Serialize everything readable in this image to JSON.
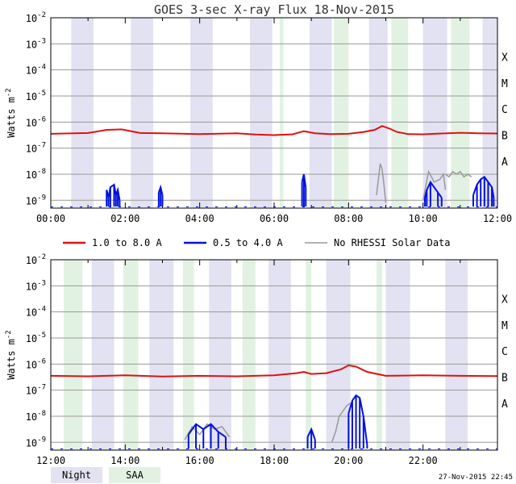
{
  "chart_data": {
    "type": "line",
    "title": "GOES 3-sec X-ray Flux   18-Nov-2015",
    "ylabel": "Watts m^-2",
    "ylim_log10": [
      -9.3,
      -2
    ],
    "y_ticks_exp": [
      -2,
      -3,
      -4,
      -5,
      -6,
      -7,
      -8,
      -9
    ],
    "flare_classes": [
      {
        "label": "X",
        "log10": -3.5
      },
      {
        "label": "M",
        "log10": -4.5
      },
      {
        "label": "C",
        "log10": -5.5
      },
      {
        "label": "B",
        "log10": -6.5
      },
      {
        "label": "A",
        "log10": -7.5
      }
    ],
    "colors": {
      "long": "#e01010",
      "short": "#0010e0",
      "nodata": "#999999",
      "night": "#e2e2f2",
      "saa": "#e2f2e2",
      "grid": "#999999",
      "axis": "#000000"
    },
    "legend": [
      {
        "label": "1.0 to 8.0 A",
        "color": "#e01010"
      },
      {
        "label": "0.5 to 4.0 A",
        "color": "#0010e0"
      },
      {
        "label": "No RHESSI Solar Data",
        "color": "#999999"
      }
    ],
    "shade_legend": [
      {
        "label": "Night",
        "color": "#e2e2f2"
      },
      {
        "label": "SAA",
        "color": "#e2f2e2"
      }
    ],
    "panels": [
      {
        "xlim_hours": [
          0,
          12
        ],
        "x_tick_labels": [
          "00:00",
          "02:00",
          "04:00",
          "06:00",
          "08:00",
          "10:00",
          "12:00"
        ],
        "night": [
          [
            0.55,
            1.15
          ],
          [
            2.15,
            2.75
          ],
          [
            3.75,
            4.35
          ],
          [
            5.35,
            5.95
          ],
          [
            6.95,
            7.55
          ],
          [
            8.55,
            9.05
          ],
          [
            10.0,
            10.65
          ],
          [
            11.6,
            12.0
          ]
        ],
        "saa": [
          [
            6.15,
            6.25
          ],
          [
            7.6,
            8.0
          ],
          [
            9.15,
            9.6
          ],
          [
            10.75,
            11.25
          ]
        ],
        "long_channel": {
          "t": [
            0.0,
            1.0,
            1.5,
            1.9,
            2.4,
            3.0,
            4.0,
            5.0,
            5.5,
            6.0,
            6.5,
            6.8,
            7.1,
            7.5,
            8.0,
            8.4,
            8.7,
            8.9,
            9.1,
            9.3,
            9.6,
            10.0,
            10.5,
            11.0,
            11.5,
            12.0
          ],
          "log10": [
            -6.45,
            -6.42,
            -6.3,
            -6.28,
            -6.42,
            -6.43,
            -6.46,
            -6.43,
            -6.48,
            -6.5,
            -6.47,
            -6.35,
            -6.43,
            -6.46,
            -6.45,
            -6.38,
            -6.3,
            -6.15,
            -6.25,
            -6.38,
            -6.46,
            -6.47,
            -6.44,
            -6.41,
            -6.43,
            -6.44
          ]
        },
        "short_channel_bursts": [
          {
            "t": [
              1.5,
              1.55,
              1.6,
              1.7,
              1.75,
              1.8,
              1.85
            ],
            "log10": [
              -8.6,
              -8.9,
              -8.5,
              -8.4,
              -8.8,
              -8.6,
              -9.0
            ]
          },
          {
            "t": [
              2.9,
              2.95,
              3.0
            ],
            "log10": [
              -8.7,
              -8.5,
              -8.8
            ]
          },
          {
            "t": [
              6.75,
              6.8,
              6.85
            ],
            "log10": [
              -8.3,
              -8.0,
              -8.5
            ]
          },
          {
            "t": [
              10.05,
              10.1,
              10.2,
              10.4,
              10.5
            ],
            "log10": [
              -8.9,
              -8.6,
              -8.3,
              -8.7,
              -8.9
            ]
          },
          {
            "t": [
              11.35,
              11.45,
              11.55,
              11.65,
              11.75,
              11.85,
              11.9
            ],
            "log10": [
              -8.8,
              -8.4,
              -8.2,
              -8.1,
              -8.3,
              -8.5,
              -8.9
            ]
          }
        ],
        "nodata_segments": [
          {
            "t": [
              8.75,
              8.8,
              8.85,
              8.9,
              8.95,
              9.0
            ],
            "log10": [
              -8.8,
              -8.2,
              -7.6,
              -7.8,
              -8.4,
              -9.1
            ]
          },
          {
            "t": [
              10.0,
              10.15,
              10.3,
              10.45,
              10.55,
              10.6
            ],
            "log10": [
              -9.0,
              -7.9,
              -8.3,
              -8.2,
              -8.0,
              -8.6
            ]
          },
          {
            "t": [
              10.6,
              10.7,
              10.8,
              10.9,
              11.0,
              11.1,
              11.2,
              11.3
            ],
            "log10": [
              -8.0,
              -8.1,
              -7.9,
              -8.0,
              -7.9,
              -8.1,
              -8.0,
              -8.1
            ]
          }
        ]
      },
      {
        "xlim_hours": [
          12,
          24
        ],
        "x_tick_labels": [
          "12:00",
          "14:00",
          "16:00",
          "18:00",
          "20:00",
          "22:00",
          ""
        ],
        "night": [
          [
            13.1,
            13.7
          ],
          [
            14.65,
            15.3
          ],
          [
            16.25,
            16.85
          ],
          [
            17.85,
            18.45
          ],
          [
            19.4,
            20.05
          ],
          [
            21.0,
            21.65
          ],
          [
            22.6,
            23.2
          ]
        ],
        "saa": [
          [
            12.35,
            12.85
          ],
          [
            13.95,
            14.35
          ],
          [
            15.55,
            15.85
          ],
          [
            17.15,
            17.5
          ],
          [
            18.85,
            19.0
          ],
          [
            20.75,
            20.9
          ]
        ],
        "long_channel": {
          "t": [
            12.0,
            13.0,
            14.0,
            15.0,
            16.0,
            17.0,
            18.0,
            18.6,
            18.8,
            19.0,
            19.4,
            19.8,
            20.0,
            20.2,
            20.5,
            21.0,
            22.0,
            23.0,
            24.0
          ],
          "log10": [
            -6.45,
            -6.47,
            -6.43,
            -6.48,
            -6.45,
            -6.47,
            -6.43,
            -6.35,
            -6.3,
            -6.38,
            -6.35,
            -6.2,
            -6.05,
            -6.1,
            -6.3,
            -6.45,
            -6.43,
            -6.45,
            -6.46
          ]
        },
        "short_channel_bursts": [
          {
            "t": [
              15.7,
              15.9,
              16.1,
              16.3,
              16.5,
              16.7
            ],
            "log10": [
              -8.7,
              -8.3,
              -8.5,
              -8.3,
              -8.6,
              -8.8
            ]
          },
          {
            "t": [
              18.9,
              19.0,
              19.1
            ],
            "log10": [
              -8.8,
              -8.5,
              -8.9
            ]
          },
          {
            "t": [
              20.0,
              20.1,
              20.2,
              20.3,
              20.4,
              20.5
            ],
            "log10": [
              -7.9,
              -7.4,
              -7.2,
              -7.3,
              -8.0,
              -9.1
            ]
          }
        ],
        "nodata_segments": [
          {
            "t": [
              15.6,
              15.8,
              16.0,
              16.2,
              16.4,
              16.6,
              16.8
            ],
            "log10": [
              -8.9,
              -8.4,
              -8.7,
              -8.3,
              -8.5,
              -8.4,
              -8.8
            ]
          },
          {
            "t": [
              19.55,
              19.65,
              19.75,
              19.85,
              19.95,
              20.05
            ],
            "log10": [
              -9.0,
              -8.6,
              -8.0,
              -7.8,
              -7.6,
              -7.5
            ]
          }
        ]
      }
    ]
  },
  "footer": {
    "timestamp": "27-Nov-2015 22:45"
  }
}
